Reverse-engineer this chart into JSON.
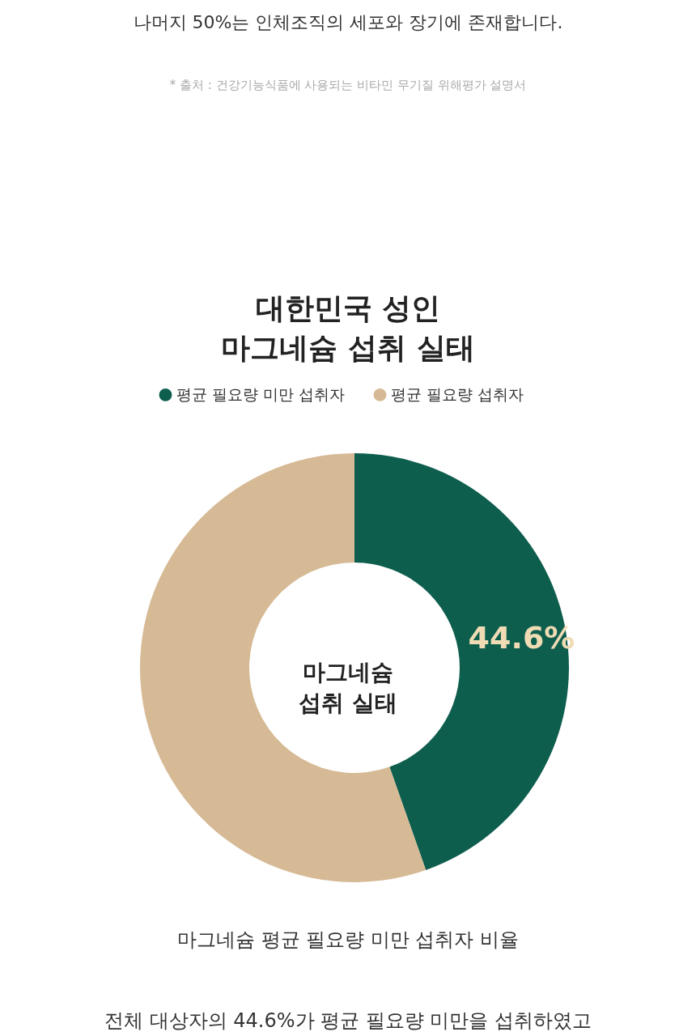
{
  "chart_data": {
    "type": "donut",
    "title": "대한민국 성인\n마그네슘 섭취 실태",
    "categories": [
      "평균 필요량 미만 섭취자",
      "평균 필요량 섭취자"
    ],
    "values": [
      44.6,
      55.4
    ],
    "colors": [
      "#0e5e4e",
      "#d6ba96"
    ],
    "value_labels": [
      "44.6%",
      null
    ],
    "legend": "top",
    "annotations": [
      "나머지 50%는 인체조직의 세포와 장기에 존재합니다.",
      "* 출처 : 건강기능식품에 사용되는 비타민 무기질 위해평가 설명서",
      "마그네슘\n섭취 실태",
      "마그네슘 평균 필요량 미만 섭취자 비율",
      "전체 대상자의 44.6%가 평균 필요량 미만을 섭취하였고"
    ]
  }
}
